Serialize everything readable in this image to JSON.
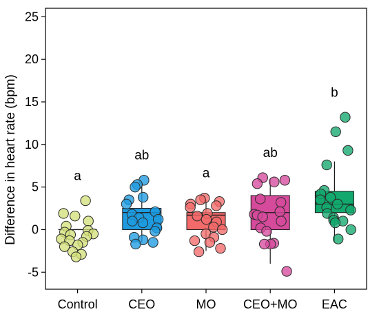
{
  "chart_data": {
    "type": "box",
    "ylabel": "Difference in heart rate (bpm)",
    "ylim": [
      -7,
      26
    ],
    "yticks": [
      -5,
      0,
      5,
      10,
      15,
      20,
      25
    ],
    "categories": [
      "Control",
      "CEO",
      "MO",
      "CEO+MO",
      "EAC"
    ],
    "groups": [
      {
        "name": "Control",
        "color": "#d4e07a",
        "letter": "a",
        "q1": 0,
        "median": 0,
        "q3": 0,
        "whisker_low": null,
        "whisker_high": null,
        "points": [
          3.4,
          1.9,
          1.6,
          1.0,
          0.4,
          -0.1,
          -0.3,
          -0.5,
          -0.6,
          -0.8,
          -1.1,
          -1.3,
          -1.5,
          -1.8,
          -2.0,
          -2.6,
          -2.9,
          -3.2
        ]
      },
      {
        "name": "CEO",
        "color": "#1e9be0",
        "letter": "ab",
        "q1": 0,
        "median": 2,
        "q3": 2.5,
        "whisker_low": -1.5,
        "whisker_high": 5.5,
        "points": [
          5.8,
          5.3,
          5.0,
          3.8,
          3.5,
          3.0,
          2.1,
          1.8,
          1.4,
          1.2,
          1.0,
          0.8,
          0.2,
          -0.2,
          -0.9,
          -1.2,
          -1.5,
          -1.7
        ]
      },
      {
        "name": "MO",
        "color": "#f26a6a",
        "letter": "a",
        "q1": 0,
        "median": 1.7,
        "q3": 2,
        "whisker_low": -2.5,
        "whisker_high": 3.5,
        "points": [
          3.7,
          3.5,
          3.3,
          3.0,
          2.8,
          2.6,
          1.9,
          1.6,
          1.2,
          0.9,
          0.3,
          0.0,
          -0.5,
          -0.9,
          -1.3,
          -1.5,
          -2.2,
          -2.6
        ]
      },
      {
        "name": "CEO+MO",
        "color": "#d64a9c",
        "letter": "ab",
        "q1": 0,
        "median": 2,
        "q3": 4,
        "whisker_low": -4,
        "whisker_high": 6,
        "points": [
          6.1,
          5.8,
          5.6,
          5.4,
          3.6,
          3.2,
          2.1,
          1.8,
          1.7,
          1.5,
          1.0,
          0.2,
          -0.2,
          -1.6,
          -1.7,
          -1.7,
          -4.9
        ]
      },
      {
        "name": "EAC",
        "color": "#13a86d",
        "letter": "b",
        "q1": 2,
        "median": 3,
        "q3": 4.5,
        "whisker_low": -1.5,
        "whisker_high": 8,
        "points": [
          13.2,
          11.5,
          9.3,
          7.6,
          4.6,
          4.2,
          3.8,
          3.5,
          3.0,
          2.6,
          2.3,
          1.9,
          1.4,
          1.1,
          1.0,
          0.8,
          0.0,
          -1.1
        ]
      }
    ],
    "grid": false
  }
}
